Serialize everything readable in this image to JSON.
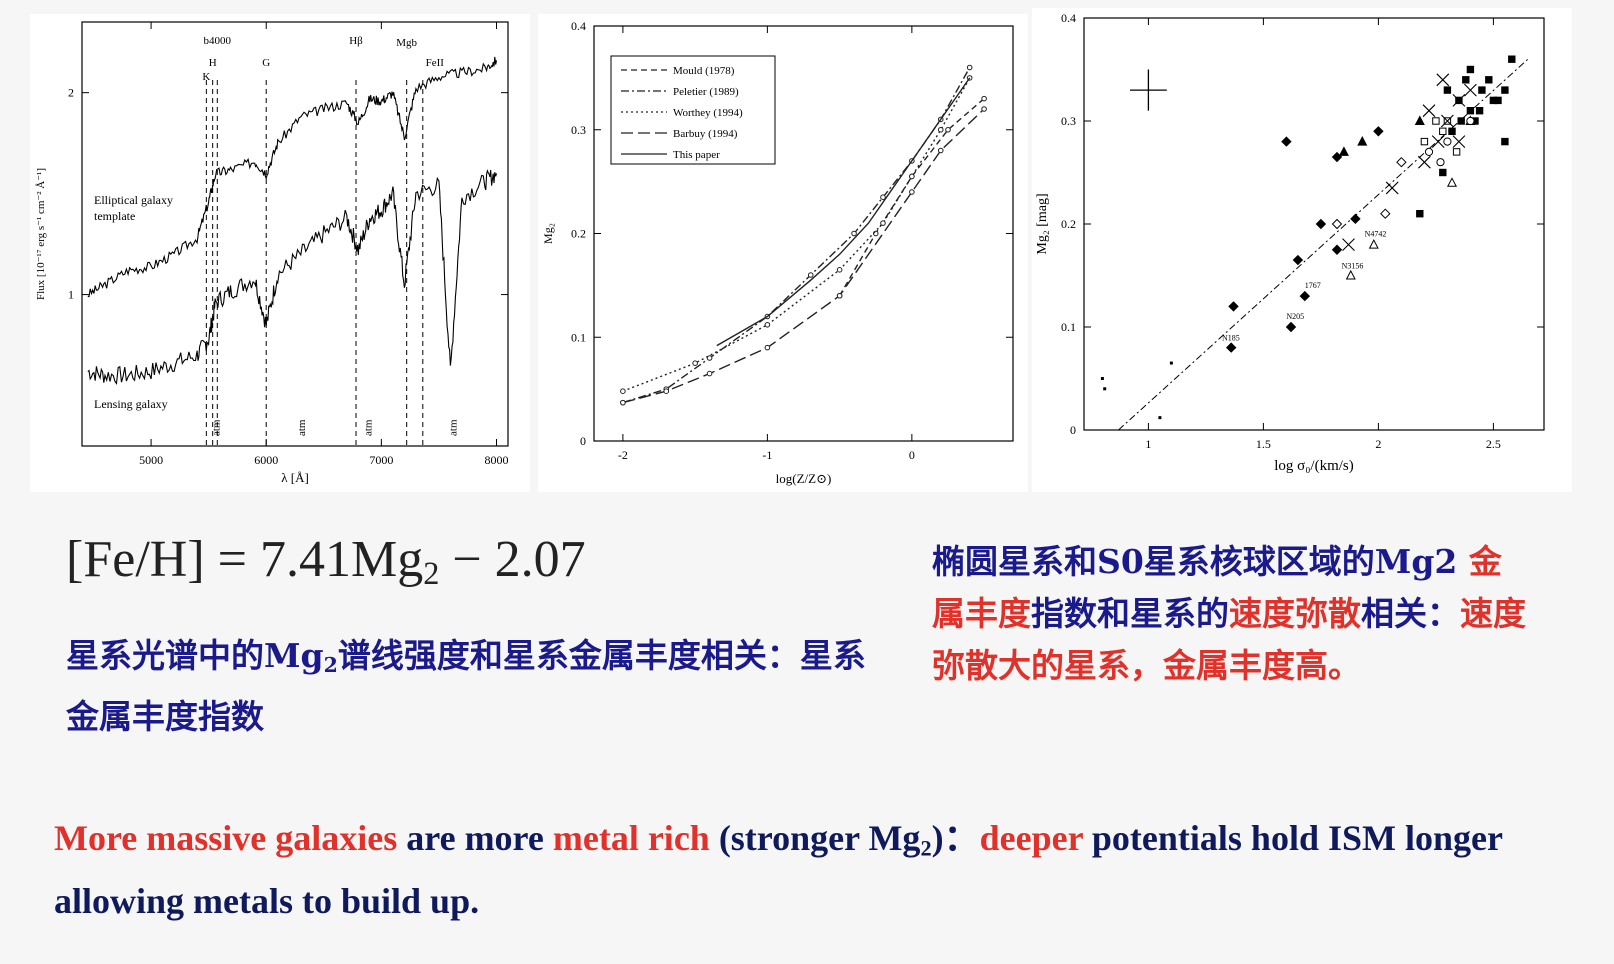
{
  "chart_data": [
    {
      "type": "line",
      "xlabel": "λ [Å]",
      "ylabel": "Flux [10⁻¹⁷ erg s⁻¹ cm⁻² Å⁻¹]",
      "xlim": [
        4400,
        8100
      ],
      "ylim": [
        0.25,
        2.35
      ],
      "xticks": [
        "5000",
        "6000",
        "7000",
        "8000"
      ],
      "yticks": [
        "1",
        "2"
      ],
      "lines": [
        {
          "label": "K",
          "x": 5480
        },
        {
          "label": "H",
          "x": 5535
        },
        {
          "label": "b4000",
          "x": 5575
        },
        {
          "label": "G",
          "x": 6000
        },
        {
          "label": "Hβ",
          "x": 6780
        },
        {
          "label": "Mgb",
          "x": 7220
        },
        {
          "label": "FeII",
          "x": 7360
        }
      ],
      "atm": [
        {
          "label": "atm",
          "x": 5560
        },
        {
          "label": "atm",
          "x": 6300
        },
        {
          "label": "atm",
          "x": 6880
        },
        {
          "label": "atm",
          "x": 7620
        }
      ],
      "series": [
        {
          "name": "Elliptical galaxy template",
          "x": [
            4450,
            4600,
            4800,
            5000,
            5200,
            5400,
            5500,
            5560,
            5700,
            5900,
            6000,
            6100,
            6300,
            6500,
            6700,
            6800,
            6900,
            7000,
            7100,
            7200,
            7300,
            7500,
            7700,
            7900,
            8000
          ],
          "y": [
            1.0,
            1.05,
            1.12,
            1.14,
            1.2,
            1.28,
            1.46,
            1.6,
            1.62,
            1.66,
            1.6,
            1.75,
            1.88,
            1.92,
            1.95,
            1.85,
            1.97,
            1.96,
            2.0,
            1.78,
            2.02,
            2.08,
            2.1,
            2.12,
            2.16
          ]
        },
        {
          "name": "Lensing galaxy",
          "x": [
            4450,
            4600,
            4800,
            5000,
            5200,
            5400,
            5500,
            5560,
            5700,
            5900,
            6000,
            6100,
            6300,
            6500,
            6700,
            6800,
            6900,
            7000,
            7100,
            7200,
            7300,
            7500,
            7600,
            7700,
            7900,
            8000
          ],
          "y": [
            0.62,
            0.6,
            0.6,
            0.62,
            0.66,
            0.7,
            0.78,
            0.96,
            1.02,
            1.08,
            0.85,
            1.1,
            1.2,
            1.3,
            1.38,
            1.22,
            1.38,
            1.42,
            1.5,
            1.05,
            1.5,
            1.54,
            0.62,
            1.48,
            1.56,
            1.6
          ]
        }
      ]
    },
    {
      "type": "line",
      "xlabel": "log(Z/Z⊙)",
      "ylabel": "Mg₂",
      "xlim": [
        -2.2,
        0.7
      ],
      "ylim": [
        0,
        0.4
      ],
      "xticks": [
        "-2",
        "-1",
        "0"
      ],
      "yticks": [
        "0",
        "0.1",
        "0.2",
        "0.3",
        "0.4"
      ],
      "legend": "top-left",
      "series": [
        {
          "name": "Mould (1978)",
          "dash": "6,4",
          "x": [
            -0.5,
            -0.25,
            0,
            0.25,
            0.5
          ],
          "y": [
            0.14,
            0.2,
            0.255,
            0.3,
            0.33
          ]
        },
        {
          "name": "Peletier (1989)",
          "dash": "8,3,2,3",
          "x": [
            -2,
            -1.7,
            -1.4,
            -1.0,
            -0.7,
            -0.4,
            -0.2,
            0,
            0.2,
            0.4
          ],
          "y": [
            0.037,
            0.05,
            0.08,
            0.12,
            0.16,
            0.2,
            0.235,
            0.27,
            0.31,
            0.36
          ]
        },
        {
          "name": "Worthey (1994)",
          "dash": "2,3",
          "x": [
            -2,
            -1.5,
            -1.0,
            -0.5,
            -0.2,
            0,
            0.2,
            0.4
          ],
          "y": [
            0.048,
            0.075,
            0.112,
            0.165,
            0.21,
            0.255,
            0.3,
            0.35
          ]
        },
        {
          "name": "Barbuy (1994)",
          "dash": "12,5",
          "x": [
            -2,
            -1.7,
            -1.4,
            -1.0,
            -0.5,
            0,
            0.2,
            0.5
          ],
          "y": [
            0.037,
            0.048,
            0.065,
            0.09,
            0.14,
            0.24,
            0.28,
            0.32
          ]
        },
        {
          "name": "This paper",
          "dash": "",
          "x": [
            -1.35,
            -1.0,
            -0.7,
            -0.5,
            -0.3,
            -0.1,
            0.1,
            0.3,
            0.4
          ],
          "y": [
            0.092,
            0.12,
            0.155,
            0.18,
            0.21,
            0.25,
            0.29,
            0.33,
            0.35
          ]
        }
      ]
    },
    {
      "type": "scatter",
      "xlabel": "log σ₀/(km/s)",
      "ylabel": "Mg₂ [mag]",
      "xlim": [
        0.72,
        2.72
      ],
      "ylim": [
        0,
        0.4
      ],
      "xticks": [
        "1",
        "1.5",
        "2",
        "2.5"
      ],
      "yticks": [
        "0",
        "0.1",
        "0.2",
        "0.3",
        "0.4"
      ],
      "fit": {
        "x": [
          0.87,
          2.65
        ],
        "y": [
          0,
          0.36
        ]
      },
      "error_bar": {
        "x": 1.0,
        "y": 0.33,
        "dx": 0.08,
        "dy": 0.02
      },
      "annotations": [
        {
          "text": "N185",
          "x": 1.32,
          "y": 0.087
        },
        {
          "text": "N205",
          "x": 1.6,
          "y": 0.108
        },
        {
          "text": "1767",
          "x": 1.68,
          "y": 0.138
        },
        {
          "text": "N3156",
          "x": 1.84,
          "y": 0.157
        },
        {
          "text": "N4742",
          "x": 1.94,
          "y": 0.188
        }
      ],
      "points_filled_square": [
        [
          2.3,
          0.33
        ],
        [
          2.35,
          0.32
        ],
        [
          2.4,
          0.31
        ],
        [
          2.45,
          0.33
        ],
        [
          2.5,
          0.32
        ],
        [
          2.55,
          0.33
        ],
        [
          2.42,
          0.3
        ],
        [
          2.38,
          0.34
        ],
        [
          2.48,
          0.34
        ],
        [
          2.58,
          0.36
        ],
        [
          2.52,
          0.32
        ],
        [
          2.32,
          0.29
        ],
        [
          2.18,
          0.21
        ],
        [
          2.55,
          0.28
        ],
        [
          2.28,
          0.25
        ],
        [
          2.44,
          0.31
        ],
        [
          2.36,
          0.3
        ],
        [
          2.4,
          0.35
        ]
      ],
      "points_filled_diamond": [
        [
          1.37,
          0.12
        ],
        [
          1.62,
          0.1
        ],
        [
          1.65,
          0.165
        ],
        [
          1.75,
          0.2
        ],
        [
          1.82,
          0.175
        ],
        [
          1.9,
          0.205
        ],
        [
          1.82,
          0.265
        ],
        [
          1.6,
          0.28
        ],
        [
          2.0,
          0.29
        ],
        [
          1.36,
          0.08
        ],
        [
          1.68,
          0.13
        ]
      ],
      "points_filled_triangle": [
        [
          1.85,
          0.27
        ],
        [
          1.93,
          0.28
        ],
        [
          2.18,
          0.3
        ]
      ],
      "points_open_square": [
        [
          2.2,
          0.28
        ],
        [
          2.28,
          0.29
        ],
        [
          2.34,
          0.27
        ],
        [
          2.25,
          0.3
        ],
        [
          2.3,
          0.3
        ]
      ],
      "points_open_circle": [
        [
          2.22,
          0.27
        ],
        [
          2.3,
          0.28
        ],
        [
          2.4,
          0.3
        ],
        [
          2.27,
          0.26
        ]
      ],
      "points_open_triangle": [
        [
          1.98,
          0.18
        ],
        [
          1.88,
          0.15
        ],
        [
          2.32,
          0.24
        ],
        [
          2.4,
          0.3
        ]
      ],
      "points_open_diamond": [
        [
          1.82,
          0.2
        ],
        [
          2.03,
          0.21
        ],
        [
          2.1,
          0.26
        ]
      ],
      "points_cross": [
        [
          1.87,
          0.18
        ],
        [
          2.06,
          0.235
        ],
        [
          2.2,
          0.26
        ],
        [
          2.26,
          0.28
        ],
        [
          2.3,
          0.3
        ],
        [
          2.35,
          0.32
        ],
        [
          2.4,
          0.33
        ],
        [
          2.28,
          0.34
        ],
        [
          2.22,
          0.31
        ],
        [
          2.35,
          0.28
        ]
      ],
      "points_small_dot": [
        [
          0.8,
          0.05
        ],
        [
          0.81,
          0.04
        ],
        [
          1.1,
          0.065
        ],
        [
          1.05,
          0.012
        ]
      ]
    }
  ],
  "formula": {
    "left": "[Fe/H] = 7.41Mg",
    "sub": "2",
    "right": " − 2.07"
  },
  "left_text": {
    "part1": "星系光谱中的Mg",
    "sub": "2",
    "part2": "谱线强度和星系金属丰度相关：星系金属丰度指数"
  },
  "right_text": {
    "s1": "椭圆星系和S0星系核球区域的",
    "s2": "Mg2",
    "s3": " 金属丰度",
    "s4": "指数和星系的",
    "s5": "速度弥散",
    "s6": "相关：",
    "s7": "速度弥散大的星系，金属丰度高。"
  },
  "bottom_text": {
    "r1": "More massive galaxies",
    "b1": " are more ",
    "r2": "metal rich",
    "b2": " (stronger Mg",
    "sub": "2",
    "b3": ")：",
    "r3": "deeper",
    "b4": " potentials hold ISM longer allowing metals to build up."
  }
}
